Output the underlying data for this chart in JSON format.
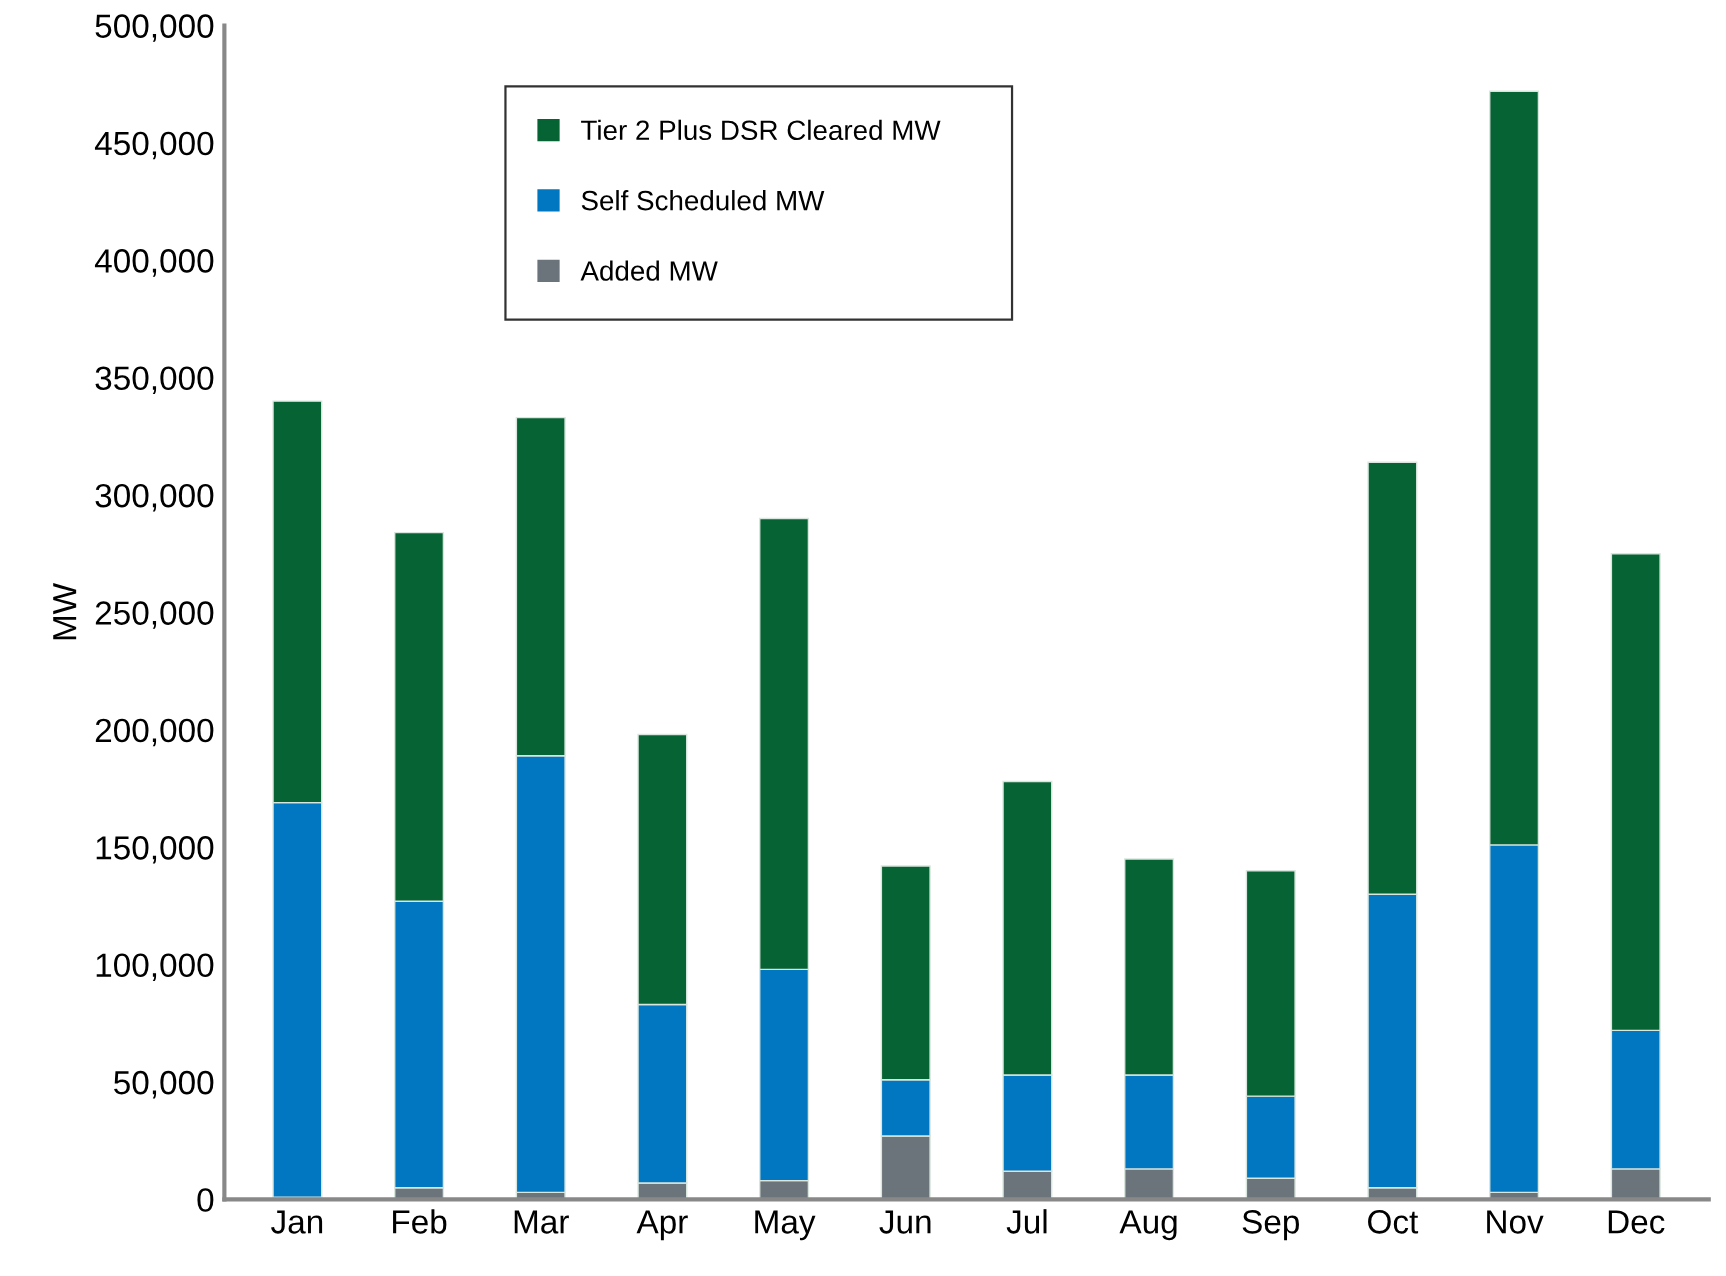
{
  "chart_data": {
    "type": "bar",
    "stacked": true,
    "ylabel": "MW",
    "categories": [
      "Jan",
      "Feb",
      "Mar",
      "Apr",
      "May",
      "Jun",
      "Jul",
      "Aug",
      "Sep",
      "Oct",
      "Nov",
      "Dec"
    ],
    "series": [
      {
        "name": "Added MW",
        "color": "#6b737b",
        "values": [
          1000,
          5000,
          3000,
          7000,
          8000,
          27000,
          12000,
          13000,
          9000,
          5000,
          3000,
          13000
        ]
      },
      {
        "name": "Self Scheduled MW",
        "color": "#0077c0",
        "values": [
          168000,
          122000,
          186000,
          76000,
          90000,
          24000,
          41000,
          40000,
          35000,
          125000,
          148000,
          59000
        ]
      },
      {
        "name": "Tier 2 Plus DSR Cleared MW",
        "color": "#066333",
        "values": [
          171000,
          157000,
          144000,
          115000,
          192000,
          91000,
          125000,
          92000,
          96000,
          184000,
          321000,
          203000
        ]
      }
    ],
    "ylim": [
      0,
      500000
    ],
    "yticks": [
      0,
      {
        "value": 50000,
        "label": "50,000"
      },
      {
        "value": 100000,
        "label": "100,000"
      },
      {
        "value": 150000,
        "label": "150,000"
      },
      {
        "value": 200000,
        "label": "200,000"
      },
      {
        "value": 250000,
        "label": "250,000"
      },
      {
        "value": 300000,
        "label": "300,000"
      },
      {
        "value": 350000,
        "label": "350,000"
      },
      {
        "value": 400000,
        "label": "400,000"
      },
      {
        "value": 450000,
        "label": "450,000"
      },
      {
        "value": 500000,
        "label": "500,000"
      }
    ],
    "grid": false,
    "legend": "top"
  }
}
